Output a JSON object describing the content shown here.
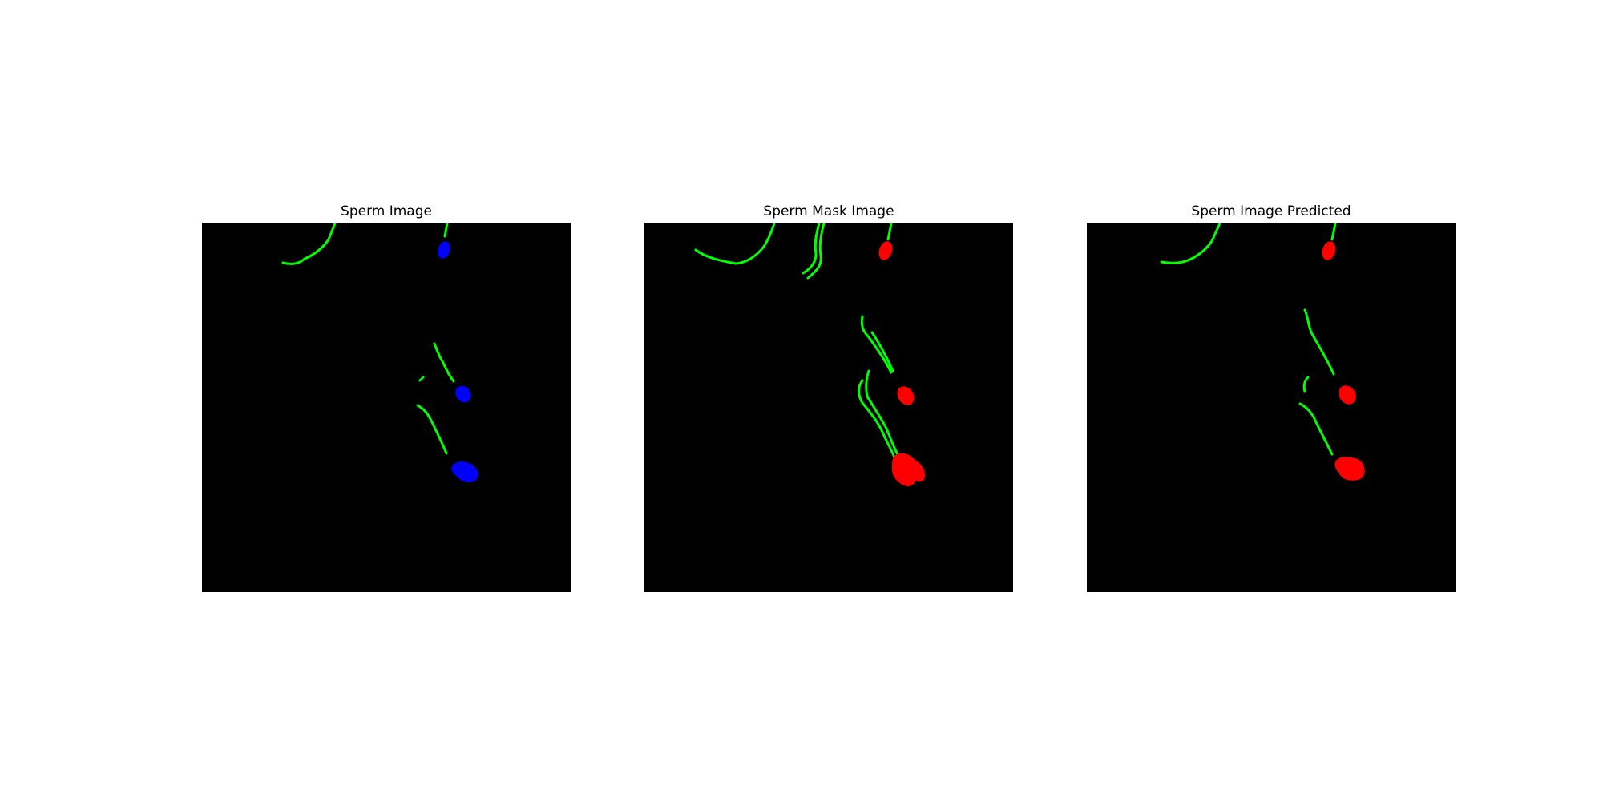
{
  "colors": {
    "background": "#000000",
    "tail": "#00ff00",
    "head_original": "#0000ff",
    "head_mask": "#ff0000",
    "head_predicted": "#ff0000"
  },
  "panels": [
    {
      "title": "Sperm Image"
    },
    {
      "title": "Sperm Mask Image"
    },
    {
      "title": "Sperm Image Predicted"
    }
  ]
}
